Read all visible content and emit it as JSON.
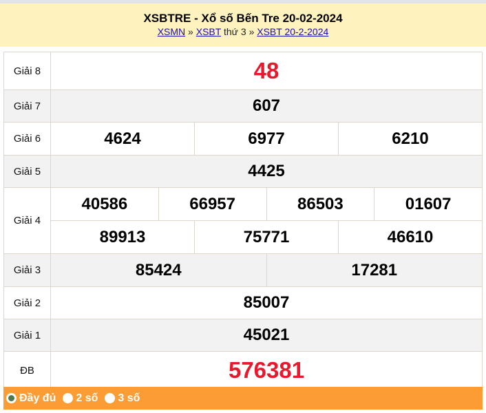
{
  "header": {
    "title": "XSBTRE - Xổ số Bến Tre 20-02-2024",
    "breadcrumb": {
      "link1": "XSMN",
      "sep1": "»",
      "link2": "XSBT",
      "text": "thứ 3",
      "sep2": "»",
      "link3": "XSBT 20-2-2024"
    }
  },
  "results": {
    "g8": {
      "label": "Giải 8",
      "values": [
        "48"
      ]
    },
    "g7": {
      "label": "Giải 7",
      "values": [
        "607"
      ]
    },
    "g6": {
      "label": "Giải 6",
      "values": [
        "4624",
        "6977",
        "6210"
      ]
    },
    "g5": {
      "label": "Giải 5",
      "values": [
        "4425"
      ]
    },
    "g4": {
      "label": "Giải 4",
      "values": [
        "40586",
        "66957",
        "86503",
        "01607",
        "89913",
        "75771",
        "46610"
      ]
    },
    "g3": {
      "label": "Giải 3",
      "values": [
        "85424",
        "17281"
      ]
    },
    "g2": {
      "label": "Giải 2",
      "values": [
        "85007"
      ]
    },
    "g1": {
      "label": "Giải 1",
      "values": [
        "45021"
      ]
    },
    "db": {
      "label": "ĐB",
      "values": [
        "576381"
      ]
    }
  },
  "footer": {
    "options": [
      {
        "label": "Đầy đủ",
        "selected": true
      },
      {
        "label": "2 số",
        "selected": false
      },
      {
        "label": "3 số",
        "selected": false
      }
    ]
  },
  "colors": {
    "header_bg": "#fef2bf",
    "accent_red": "#e8192c",
    "footer_bg": "#fb9c34"
  }
}
